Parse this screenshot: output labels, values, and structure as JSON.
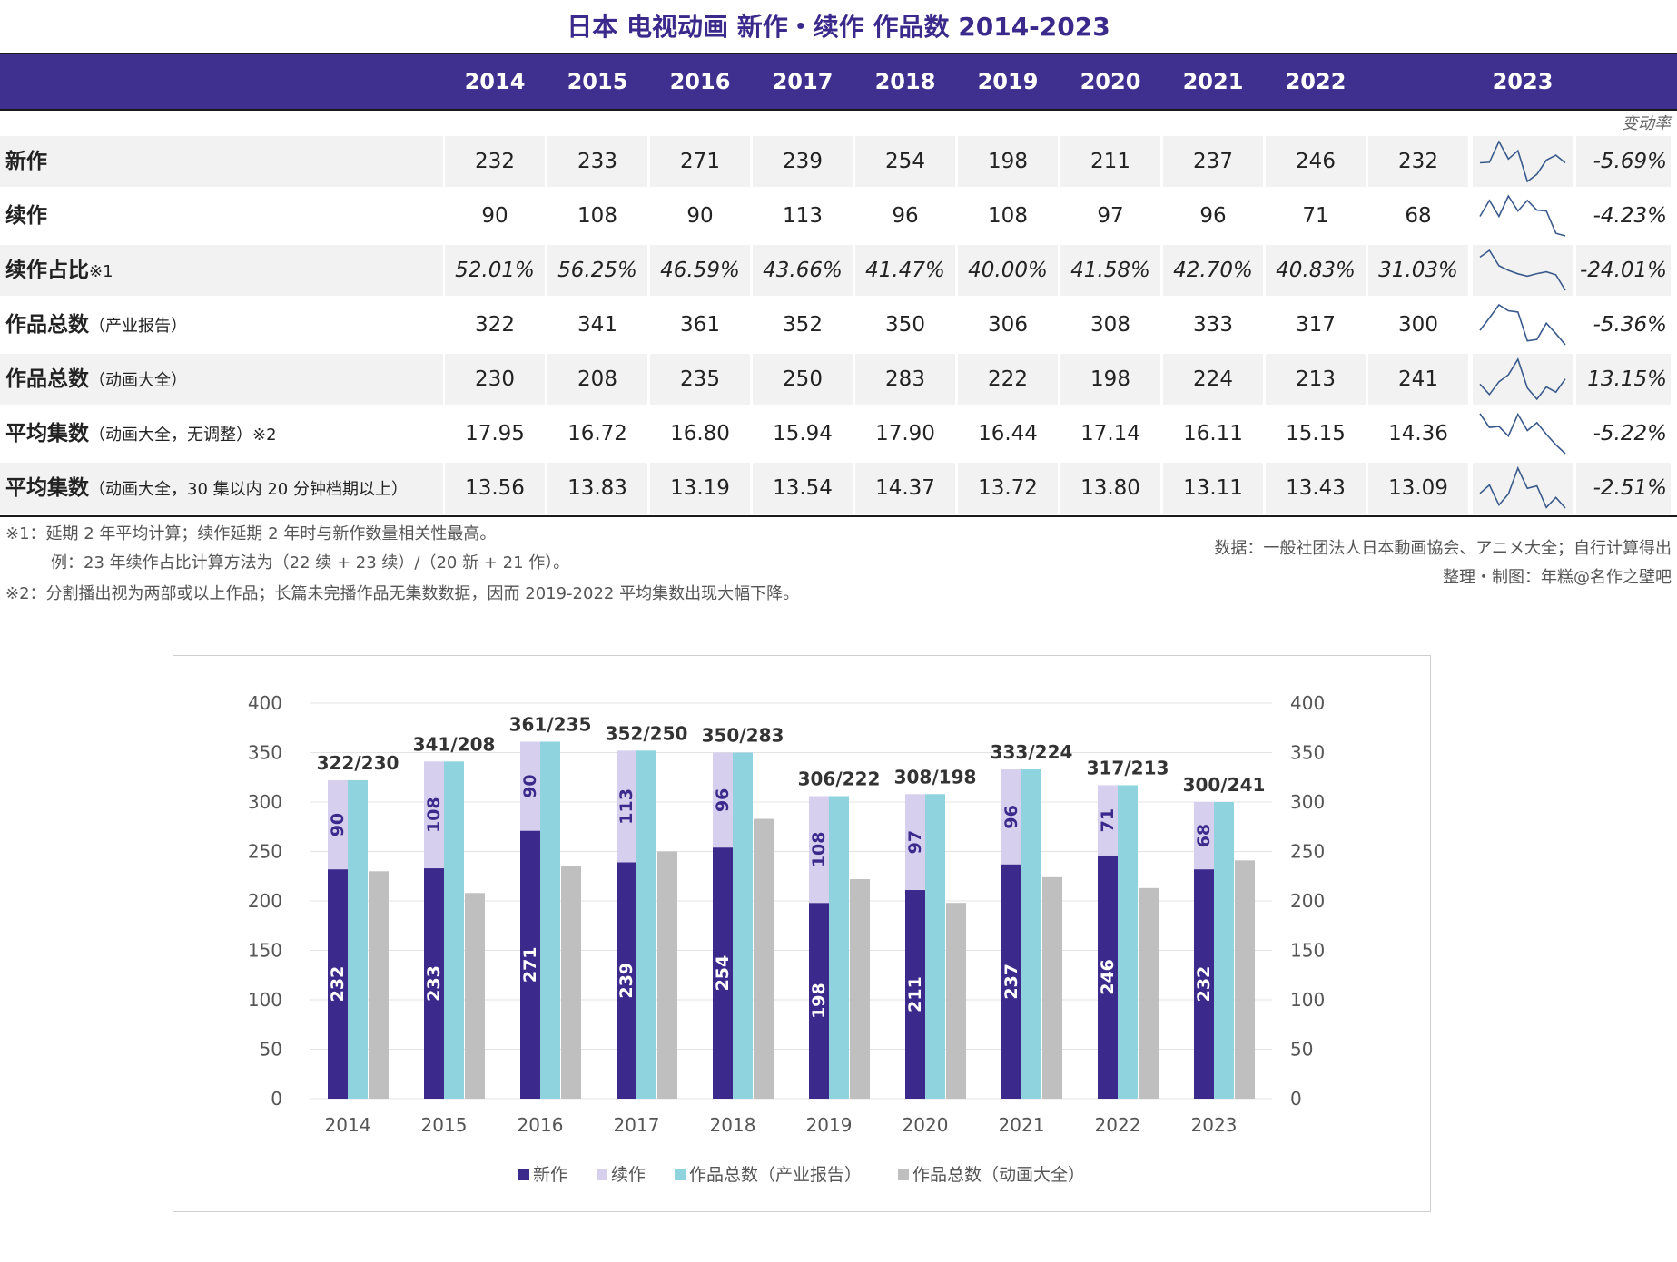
{
  "title": "日本 电视动画 新作・续作 作品数 2014-2023",
  "years": [
    "2014",
    "2015",
    "2016",
    "2017",
    "2018",
    "2019",
    "2020",
    "2021",
    "2022",
    "2023"
  ],
  "change_header": "变动率",
  "rows": [
    {
      "label": "新作",
      "sub": "",
      "values": [
        "232",
        "233",
        "271",
        "239",
        "254",
        "198",
        "211",
        "237",
        "246",
        "232"
      ],
      "spark": [
        232,
        233,
        271,
        239,
        254,
        198,
        211,
        237,
        246,
        232
      ],
      "rate": "-5.69%",
      "italic": false
    },
    {
      "label": "续作",
      "sub": "",
      "values": [
        "90",
        "108",
        "90",
        "113",
        "96",
        "108",
        "97",
        "96",
        "71",
        "68"
      ],
      "spark": [
        90,
        108,
        90,
        113,
        96,
        108,
        97,
        96,
        71,
        68
      ],
      "rate": "-4.23%",
      "italic": false
    },
    {
      "label": "续作占比",
      "sub": "※1",
      "values": [
        "52.01%",
        "56.25%",
        "46.59%",
        "43.66%",
        "41.47%",
        "40.00%",
        "41.58%",
        "42.70%",
        "40.83%",
        "31.03%"
      ],
      "spark": [
        52.01,
        56.25,
        46.59,
        43.66,
        41.47,
        40.0,
        41.58,
        42.7,
        40.83,
        31.03
      ],
      "rate": "-24.01%",
      "italic": true
    },
    {
      "label": "作品总数",
      "sub": "（产业报告）",
      "values": [
        "322",
        "341",
        "361",
        "352",
        "350",
        "306",
        "308",
        "333",
        "317",
        "300"
      ],
      "spark": [
        322,
        341,
        361,
        352,
        350,
        306,
        308,
        333,
        317,
        300
      ],
      "rate": "-5.36%",
      "italic": false
    },
    {
      "label": "作品总数",
      "sub": "（动画大全）",
      "values": [
        "230",
        "208",
        "235",
        "250",
        "283",
        "222",
        "198",
        "224",
        "213",
        "241"
      ],
      "spark": [
        230,
        208,
        235,
        250,
        283,
        222,
        198,
        224,
        213,
        241
      ],
      "rate": "13.15%",
      "italic": false
    },
    {
      "label": "平均集数",
      "sub": "（动画大全，无调整）※2",
      "values": [
        "17.95",
        "16.72",
        "16.80",
        "15.94",
        "17.90",
        "16.44",
        "17.14",
        "16.11",
        "15.15",
        "14.36"
      ],
      "spark": [
        17.95,
        16.72,
        16.8,
        15.94,
        17.9,
        16.44,
        17.14,
        16.11,
        15.15,
        14.36
      ],
      "rate": "-5.22%",
      "italic": false
    },
    {
      "label": "平均集数",
      "sub": "（动画大全，30 集以内 20 分钟档期以上）",
      "values": [
        "13.56",
        "13.83",
        "13.19",
        "13.54",
        "14.37",
        "13.72",
        "13.80",
        "13.11",
        "13.43",
        "13.09"
      ],
      "spark": [
        13.56,
        13.83,
        13.19,
        13.54,
        14.37,
        13.72,
        13.8,
        13.11,
        13.43,
        13.09
      ],
      "rate": "-2.51%",
      "italic": false
    }
  ],
  "notes": {
    "n1": "※1：延期 2 年平均计算；续作延期 2 年时与新作数量相关性最高。",
    "n1b": "例：23 年续作占比计算方法为（22 续 + 23 续）/（20 新 + 21 作）。",
    "n2": "※2：分割播出视为两部或以上作品；长篇未完播作品无集数数据，因而 2019-2022 平均集数出现大幅下降。",
    "source": "数据：一般社团法人日本動画協会、アニメ大全；自行计算得出",
    "credit": "整理・制图：年糕@名作之壁吧"
  },
  "colors": {
    "new": "#3b2a8c",
    "sequel": "#d6d0ee",
    "industry": "#8fd3df",
    "encyclopedia": "#bfbfbf",
    "header": "#3f2f8f",
    "spark": "#3a5a8c"
  },
  "chart_data": {
    "type": "bar",
    "categories": [
      "2014",
      "2015",
      "2016",
      "2017",
      "2018",
      "2019",
      "2020",
      "2021",
      "2022",
      "2023"
    ],
    "series": [
      {
        "name": "新作",
        "values": [
          232,
          233,
          271,
          239,
          254,
          198,
          211,
          237,
          246,
          232
        ],
        "stack": "a"
      },
      {
        "name": "续作",
        "values": [
          90,
          108,
          90,
          113,
          96,
          108,
          97,
          96,
          71,
          68
        ],
        "stack": "a"
      },
      {
        "name": "作品总数（产业报告）",
        "values": [
          322,
          341,
          361,
          352,
          350,
          306,
          308,
          333,
          317,
          300
        ]
      },
      {
        "name": "作品总数（动画大全）",
        "values": [
          230,
          208,
          235,
          250,
          283,
          222,
          198,
          224,
          213,
          241
        ]
      }
    ],
    "total_labels": [
      "322/230",
      "341/208",
      "361/235",
      "352/250",
      "350/283",
      "306/222",
      "308/198",
      "333/224",
      "317/213",
      "300/241"
    ],
    "ylim": [
      0,
      400
    ],
    "yticks": [
      "0",
      "50",
      "100",
      "150",
      "200",
      "250",
      "300",
      "350",
      "400"
    ],
    "legend_position": "bottom",
    "grid": true
  }
}
